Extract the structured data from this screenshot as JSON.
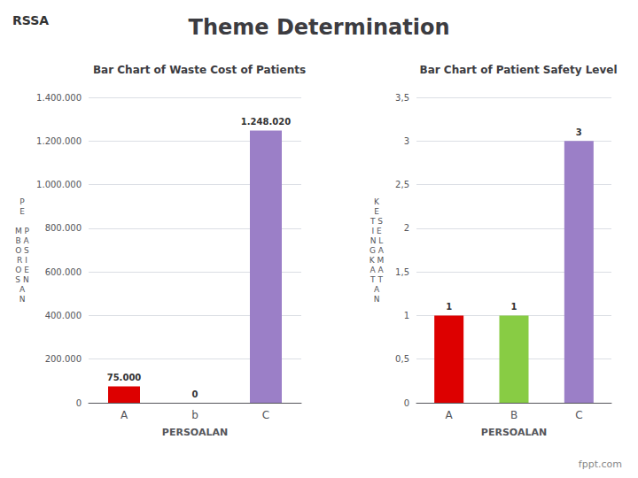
{
  "title": "Theme Determination",
  "annotations": [
    "RSSA",
    "fppt.com"
  ],
  "chart_data": [
    {
      "type": "bar",
      "title": "Bar Chart of Waste Cost of Patients",
      "categories": [
        "A",
        "b",
        "C"
      ],
      "values": [
        75000,
        0,
        1248020
      ],
      "value_labels": [
        "75.000",
        "0",
        "1.248.020"
      ],
      "colors": [
        "#dd0000",
        "#999999",
        "#9b7fc7"
      ],
      "xlabel": "PERSOALAN",
      "ylabel": "P\nE\n\nM P\nB A\nO S\nR I\nO E\nS N\nA\nN",
      "ylim": [
        0,
        1400000
      ],
      "yticks": [
        0,
        {
          "value": 200000,
          "label": "200.000"
        },
        {
          "value": 400000,
          "label": "400.000"
        },
        {
          "value": 600000,
          "label": "600.000"
        },
        {
          "value": 800000,
          "label": "800.000"
        },
        {
          "value": 1000000,
          "label": "1.000.000"
        },
        {
          "value": 1200000,
          "label": "1.200.000"
        },
        {
          "value": 1400000,
          "label": "1.400.000"
        }
      ],
      "data_labels": true,
      "grid": true
    },
    {
      "type": "bar",
      "title": "Bar Chart of Patient Safety Level",
      "categories": [
        "A",
        "B",
        "C"
      ],
      "values": [
        1,
        1,
        3
      ],
      "colors": [
        "#dd0000",
        "#88cc44",
        "#9b7fc7"
      ],
      "xlabel": "PERSOALAN",
      "ylabel": "K\nE\nT S\nI E\nN L\nG A\nK M\nA A\nT T\nA\nN",
      "ylim": [
        0,
        3.5
      ],
      "yticks": [
        0,
        {
          "value": 0.5,
          "label": "0,5"
        },
        1,
        {
          "value": 1.5,
          "label": "1,5"
        },
        2,
        {
          "value": 2.5,
          "label": "2,5"
        },
        3,
        {
          "value": 3.5,
          "label": "3,5"
        }
      ],
      "data_labels": true,
      "grid": true
    }
  ]
}
